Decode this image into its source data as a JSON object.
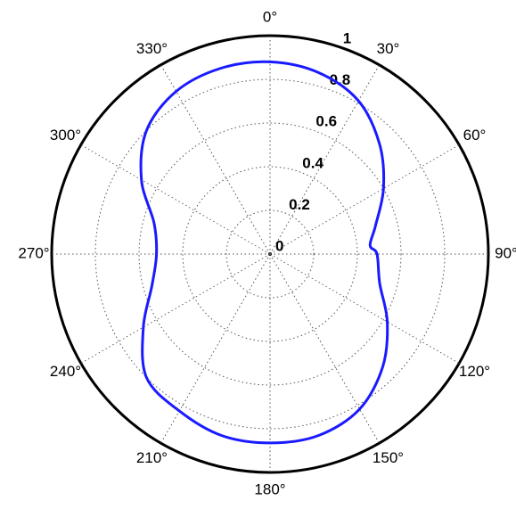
{
  "chart_data": {
    "type": "polar",
    "theta": [
      0,
      15,
      30,
      45,
      60,
      75,
      85,
      90,
      105,
      120,
      135,
      150,
      165,
      180,
      195,
      210,
      225,
      240,
      255,
      270,
      285,
      300,
      315,
      330,
      345
    ],
    "series": [
      {
        "color": "#1a1aff",
        "values": [
          0.88,
          0.86,
          0.81,
          0.71,
          0.6,
          0.5,
          0.46,
          0.49,
          0.52,
          0.62,
          0.73,
          0.82,
          0.86,
          0.865,
          0.86,
          0.83,
          0.8,
          0.67,
          0.56,
          0.52,
          0.55,
          0.68,
          0.8,
          0.86,
          0.88
        ]
      }
    ],
    "rlim": [
      0,
      1
    ],
    "rticks": [
      0,
      0.2,
      0.4,
      0.6,
      0.8,
      1
    ],
    "thetaticks": [
      {
        "value": 0,
        "label": "0°"
      },
      {
        "value": 30,
        "label": "30°"
      },
      {
        "value": 60,
        "label": "60°"
      },
      {
        "value": 90,
        "label": "90°"
      },
      {
        "value": 120,
        "label": "120°"
      },
      {
        "value": 150,
        "label": "150°"
      },
      {
        "value": 180,
        "label": "180°"
      },
      {
        "value": 210,
        "label": "210°"
      },
      {
        "value": 240,
        "label": "240°"
      },
      {
        "value": 270,
        "label": "270°"
      },
      {
        "value": 300,
        "label": "300°"
      },
      {
        "value": 330,
        "label": "330°"
      }
    ],
    "grid": true
  }
}
